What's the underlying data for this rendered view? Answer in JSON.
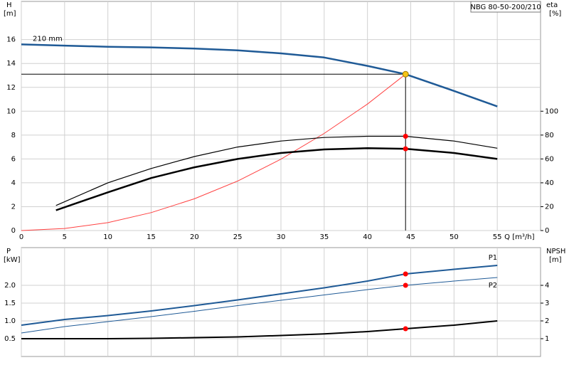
{
  "chart_data": [
    {
      "type": "line",
      "title": "NBG 80-50-200/210",
      "x_label": "Q [m³/h]",
      "y_label": "H",
      "y_unit": "[m]",
      "y2_label": "eta",
      "y2_unit": "[%]",
      "xlim": [
        0,
        60
      ],
      "xticks": [
        0,
        5,
        10,
        15,
        20,
        25,
        30,
        35,
        40,
        45,
        50,
        55
      ],
      "x_tick_labels": true,
      "ylim": [
        0,
        19.2
      ],
      "yticks": [
        0,
        2,
        4,
        6,
        8,
        10,
        12,
        14,
        16
      ],
      "y2lim": [
        0,
        192
      ],
      "y2ticks": [
        0,
        20,
        40,
        60,
        80,
        100
      ],
      "grid": true,
      "duty_point": {
        "x": 44.4,
        "y": 13.1,
        "color": "#f5c518"
      },
      "series": [
        {
          "name": "210 mm",
          "name_at": "start",
          "color": "#1f5a96",
          "line_width": 2.5,
          "x": [
            0,
            5,
            10,
            15,
            20,
            25,
            30,
            35,
            40,
            44.4,
            50,
            55
          ],
          "values": [
            15.6,
            15.5,
            15.4,
            15.35,
            15.25,
            15.1,
            14.85,
            14.5,
            13.8,
            13.1,
            11.7,
            10.4
          ]
        },
        {
          "color": "#ff4040",
          "line_width": 1,
          "x": [
            0,
            5,
            10,
            15,
            20,
            25,
            30,
            35,
            40,
            44.4
          ],
          "values": [
            0,
            0.17,
            0.66,
            1.5,
            2.66,
            4.15,
            5.98,
            8.14,
            10.6,
            13.1
          ]
        },
        {
          "color": "#000000",
          "line_width": 1.2,
          "axis": "y2",
          "x": [
            4,
            10,
            15,
            20,
            25,
            30,
            35,
            40,
            44.4,
            50,
            55
          ],
          "values": [
            21,
            40,
            52,
            62,
            70,
            75,
            78,
            79,
            79,
            75,
            69
          ]
        },
        {
          "color": "#000000",
          "line_width": 2.5,
          "axis": "y2",
          "x": [
            4,
            6,
            10,
            15,
            20,
            25,
            30,
            35,
            40,
            44.4,
            50,
            55
          ],
          "values": [
            17,
            22,
            32,
            44,
            53,
            60,
            65,
            68,
            69,
            68.5,
            65,
            60
          ]
        }
      ]
    },
    {
      "type": "line",
      "y_label": "P",
      "y_unit": "[kW]",
      "y2_label": "NPSH",
      "y2_unit": "[m]",
      "xlim": [
        0,
        60
      ],
      "xticks": [
        0,
        5,
        10,
        15,
        20,
        25,
        30,
        35,
        40,
        45,
        50,
        55
      ],
      "x_tick_labels": false,
      "ylim": [
        0,
        3.06
      ],
      "yticks": [
        0.5,
        {
          "value": 1,
          "label": "1.0"
        },
        1.5,
        {
          "value": 2,
          "label": "2.0"
        }
      ],
      "y2lim": [
        0,
        6.12
      ],
      "y2ticks": [
        1,
        2,
        3,
        4
      ],
      "grid": true,
      "duty_point": {
        "x": 44.4
      },
      "series": [
        {
          "name": "P1",
          "name_at": "end-above",
          "color": "#1f5a96",
          "line_width": 2,
          "x": [
            0,
            5,
            10,
            15,
            20,
            25,
            30,
            35,
            40,
            44.4,
            50,
            55
          ],
          "values": [
            0.88,
            1.04,
            1.15,
            1.28,
            1.43,
            1.59,
            1.76,
            1.93,
            2.12,
            2.32,
            2.45,
            2.56
          ]
        },
        {
          "name": "P2",
          "name_at": "end-below",
          "color": "#1f5a96",
          "line_width": 1,
          "x": [
            0,
            5,
            10,
            15,
            20,
            25,
            30,
            35,
            40,
            44.4,
            50,
            55
          ],
          "values": [
            0.66,
            0.84,
            0.98,
            1.12,
            1.27,
            1.43,
            1.58,
            1.73,
            1.88,
            2.0,
            2.12,
            2.22
          ]
        },
        {
          "color": "#000000",
          "line_width": 2,
          "axis": "y2",
          "x": [
            0,
            5,
            10,
            15,
            20,
            25,
            30,
            35,
            40,
            44.4,
            50,
            55
          ],
          "values": [
            1.0,
            1.0,
            1.0,
            1.02,
            1.06,
            1.1,
            1.18,
            1.27,
            1.4,
            1.56,
            1.76,
            2.0
          ]
        }
      ]
    }
  ]
}
